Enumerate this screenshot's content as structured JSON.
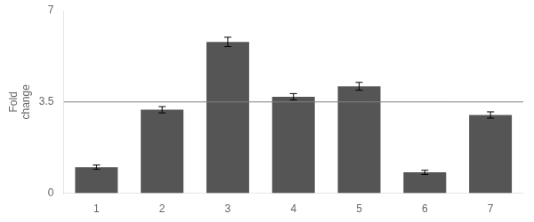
{
  "chart_data": {
    "type": "bar",
    "y_label": "Fold\nchange",
    "categories": [
      "1",
      "2",
      "3",
      "4",
      "5",
      "6",
      "7"
    ],
    "values": [
      1.0,
      3.2,
      5.8,
      3.7,
      4.1,
      0.8,
      3.0
    ],
    "errors": [
      0.08,
      0.12,
      0.18,
      0.12,
      0.15,
      0.08,
      0.12
    ],
    "color": "#555555",
    "hline": 3.5,
    "ylim": [
      0,
      7
    ],
    "yticks": [
      0,
      3.5,
      7
    ],
    "grid": false
  }
}
